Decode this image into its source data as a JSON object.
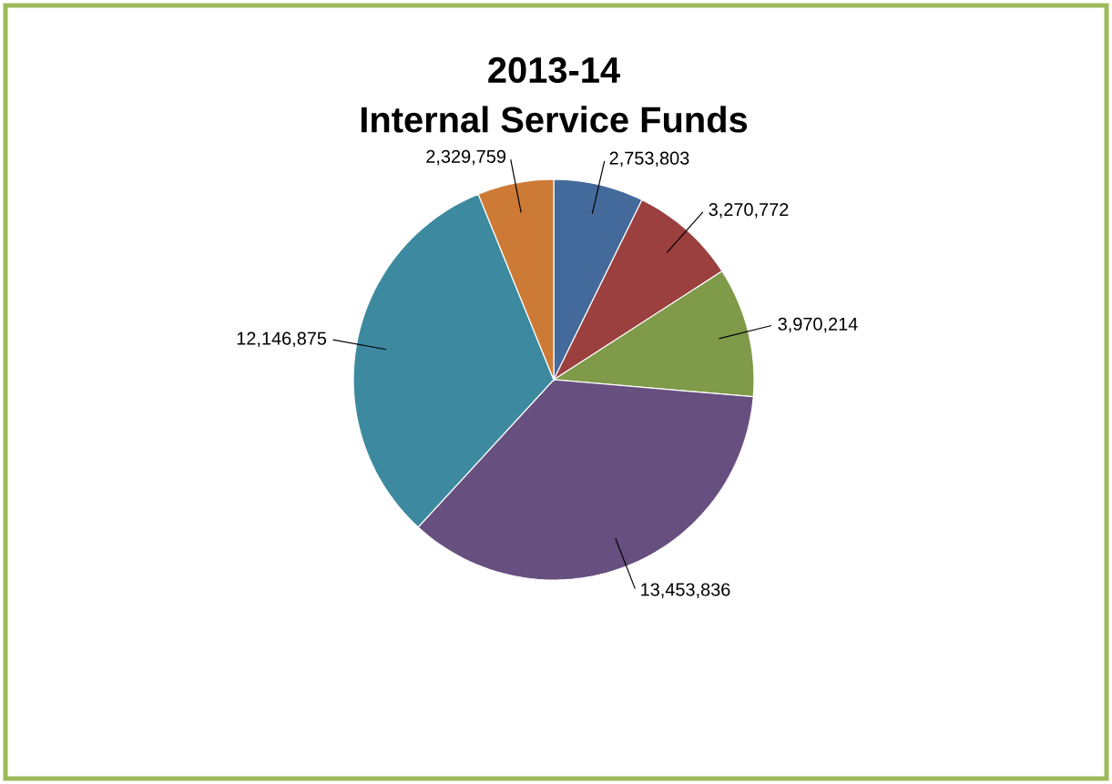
{
  "chart_data": {
    "type": "pie",
    "title": "2013-14",
    "subtitle": "Internal Service Funds",
    "categories": [
      null,
      null,
      null,
      null,
      null,
      null
    ],
    "values": [
      2753803,
      3270772,
      3970214,
      13453836,
      12146875,
      2329759
    ],
    "colors": [
      "#436a9a",
      "#9b3f3f",
      "#7f9a48",
      "#674f80",
      "#3d8aa0",
      "#cc7a35"
    ],
    "value_labels": [
      "2,753,803",
      "3,270,772",
      "3,970,214",
      "13,453,836",
      "12,146,875",
      "2,329,759"
    ]
  }
}
